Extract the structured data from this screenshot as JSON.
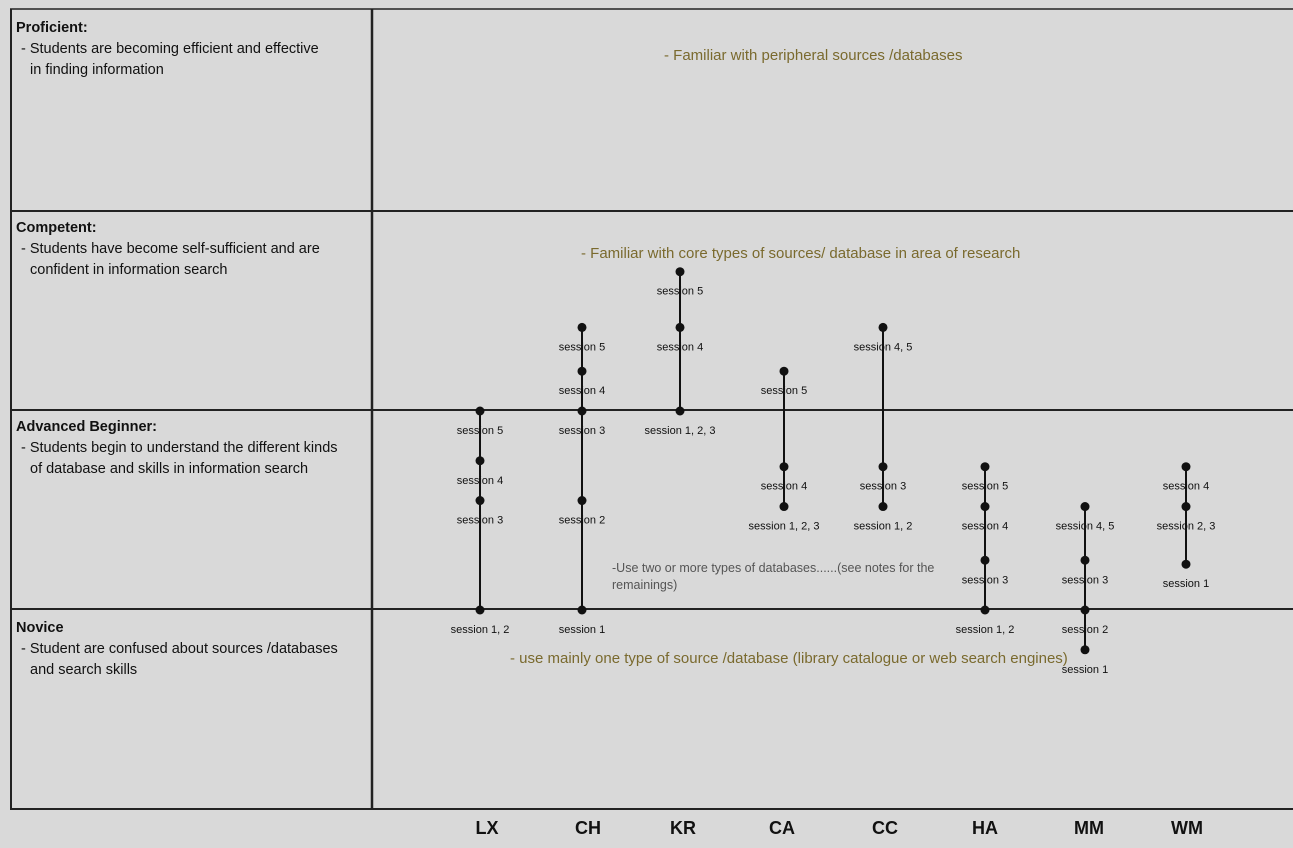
{
  "levels": [
    {
      "title": "Proficient:",
      "description": "- Students are becoming efficient and effective in finding information",
      "band_text": "- Familiar with peripheral sources /databases"
    },
    {
      "title": "Competent:",
      "description": "- Students have become self-sufficient and are confident in information search",
      "band_text": "- Familiar with core types of sources/ database in area of research"
    },
    {
      "title": "Advanced Beginner:",
      "description": "- Students begin to understand the different kinds of database and skills in information search",
      "band_text": "-Use two or more types of databases......(see notes for the remainings)"
    },
    {
      "title": "Novice",
      "description": "- Student are confused about sources /databases and search skills",
      "band_text": "- use mainly one type of source /database (library catalogue or web search engines)"
    }
  ],
  "students": [
    {
      "name": "LX",
      "points": [
        {
          "label": "session 1, 2",
          "level": 1.0
        },
        {
          "label": "session 3",
          "level": 1.55
        },
        {
          "label": "session 4",
          "level": 1.75
        },
        {
          "label": "session 5",
          "level": 2.0
        }
      ]
    },
    {
      "name": "CH",
      "points": [
        {
          "label": "session 1",
          "level": 1.0
        },
        {
          "label": "session 2",
          "level": 1.55
        },
        {
          "label": "session 3",
          "level": 2.0
        },
        {
          "label": "session 4",
          "level": 2.2
        },
        {
          "label": "session 5",
          "level": 2.42
        }
      ]
    },
    {
      "name": "KR",
      "points": [
        {
          "label": "session 1, 2, 3",
          "level": 2.0
        },
        {
          "label": "session 4",
          "level": 2.42
        },
        {
          "label": "session 5",
          "level": 2.7
        }
      ]
    },
    {
      "name": "CA",
      "points": [
        {
          "label": "session 1, 2, 3",
          "level": 1.52
        },
        {
          "label": "session 4",
          "level": 1.72
        },
        {
          "label": "session 5",
          "level": 2.2
        }
      ]
    },
    {
      "name": "CC",
      "points": [
        {
          "label": "session 1, 2",
          "level": 1.52
        },
        {
          "label": "session 3",
          "level": 1.72
        },
        {
          "label": "session 4, 5",
          "level": 2.42
        }
      ]
    },
    {
      "name": "HA",
      "points": [
        {
          "label": "session 1, 2",
          "level": 1.0
        },
        {
          "label": "session 3",
          "level": 1.25
        },
        {
          "label": "session 4",
          "level": 1.52
        },
        {
          "label": "session 5",
          "level": 1.72
        }
      ]
    },
    {
      "name": "MM",
      "points": [
        {
          "label": "session 1",
          "level": 0.8
        },
        {
          "label": "session 2",
          "level": 1.0
        },
        {
          "label": "session 3",
          "level": 1.25
        },
        {
          "label": "session 4, 5",
          "level": 1.52
        }
      ]
    },
    {
      "name": "WM",
      "points": [
        {
          "label": "session 1",
          "level": 1.23
        },
        {
          "label": "session 2, 3",
          "level": 1.52
        },
        {
          "label": "session 4",
          "level": 1.72
        }
      ]
    }
  ]
}
